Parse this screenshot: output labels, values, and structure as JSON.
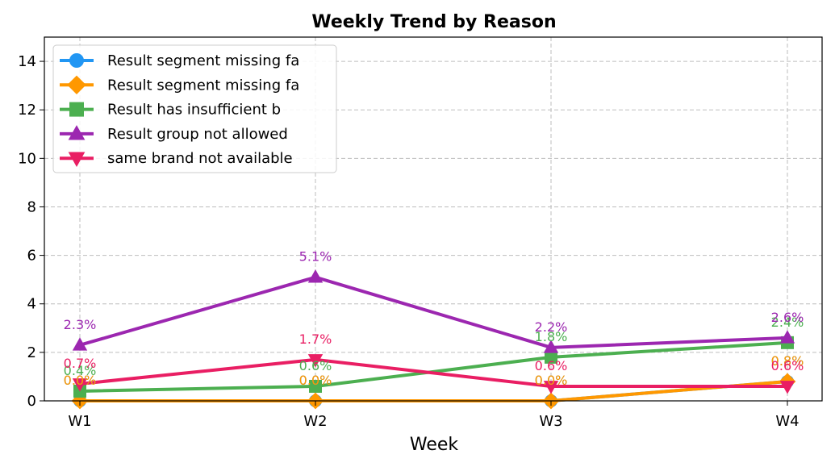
{
  "chart_data": {
    "type": "line",
    "title": "Weekly Trend by Reason",
    "xlabel": "Week",
    "ylabel": "",
    "categories": [
      "W1",
      "W2",
      "W3",
      "W4"
    ],
    "ylim": [
      0,
      15
    ],
    "yticks": [
      0,
      2,
      4,
      6,
      8,
      10,
      12,
      14
    ],
    "grid": true,
    "legend_position": "top-left",
    "series": [
      {
        "name": "Result segment missing fa",
        "color": "#2196F3",
        "marker": "circle",
        "values": [
          0.0,
          0.0,
          0.0,
          0.8
        ],
        "labels": [
          "0.0%",
          "0.0%",
          "0.0%",
          "0.8%"
        ]
      },
      {
        "name": "Result segment missing fa",
        "color": "#FF9800",
        "marker": "diamond",
        "values": [
          0.0,
          0.0,
          0.0,
          0.8
        ],
        "labels": [
          "0.0%",
          "0.0%",
          "0.0%",
          "0.8%"
        ]
      },
      {
        "name": "Result has insufficient b",
        "color": "#4CAF50",
        "marker": "square",
        "values": [
          0.4,
          0.6,
          1.8,
          2.4
        ],
        "labels": [
          "0.4%",
          "0.6%",
          "1.8%",
          "2.4%"
        ]
      },
      {
        "name": "Result group not allowed",
        "color": "#9C27B0",
        "marker": "triangle-up",
        "values": [
          2.3,
          5.1,
          2.2,
          2.6
        ],
        "labels": [
          "2.3%",
          "5.1%",
          "2.2%",
          "2.6%"
        ]
      },
      {
        "name": "same brand not available",
        "color": "#E91E63",
        "marker": "triangle-down",
        "values": [
          0.7,
          1.7,
          0.6,
          0.6
        ],
        "labels": [
          "0.7%",
          "1.7%",
          "0.6%",
          "0.6%"
        ]
      }
    ]
  }
}
